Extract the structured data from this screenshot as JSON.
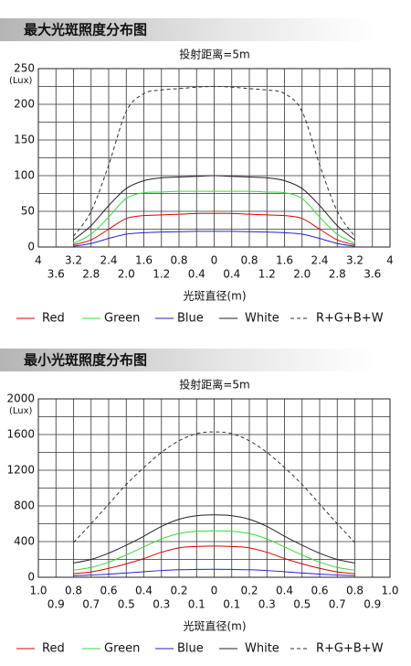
{
  "chart_data": [
    {
      "type": "line",
      "title": "最大光斑照度分布图",
      "subtitle": "投射距离=5m",
      "ylabel": "(Lux)",
      "xlabel": "光斑直径(m)",
      "x": [
        -3.2,
        -2.8,
        -2.4,
        -2.0,
        -1.6,
        -1.2,
        -0.8,
        -0.4,
        0,
        0.4,
        0.8,
        1.2,
        1.6,
        2.0,
        2.4,
        2.8,
        3.2
      ],
      "series": [
        {
          "name": "Red",
          "color": "#e00000",
          "values": [
            3,
            10,
            25,
            40,
            44,
            45,
            46,
            47,
            47,
            47,
            46,
            45,
            44,
            40,
            25,
            10,
            3
          ]
        },
        {
          "name": "Green",
          "color": "#33dd33",
          "values": [
            5,
            18,
            42,
            68,
            76,
            77,
            78,
            78,
            78,
            78,
            78,
            77,
            76,
            68,
            42,
            18,
            5
          ]
        },
        {
          "name": "Blue",
          "color": "#2222cc",
          "values": [
            1,
            5,
            12,
            18,
            20,
            21,
            21.5,
            22,
            22,
            22,
            21.5,
            21,
            20,
            18,
            12,
            5,
            1
          ]
        },
        {
          "name": "White",
          "color": "#222222",
          "values": [
            10,
            30,
            58,
            82,
            93,
            97,
            98,
            99,
            100,
            99,
            98,
            97,
            93,
            82,
            58,
            30,
            10
          ]
        },
        {
          "name": "R+G+B+W",
          "color": "#333333",
          "dashed": true,
          "values": [
            15,
            50,
            115,
            190,
            215,
            220,
            222,
            224,
            225,
            224,
            222,
            220,
            215,
            190,
            115,
            50,
            15
          ]
        }
      ],
      "xlim": [
        -4,
        4
      ],
      "xticks": [
        {
          "value": -4,
          "label": "4"
        },
        {
          "value": -3.6,
          "label": "3.6"
        },
        {
          "value": -3.2,
          "label": "3.2"
        },
        {
          "value": -2.8,
          "label": "2.8"
        },
        {
          "value": -2.4,
          "label": "2.4"
        },
        {
          "value": -2.0,
          "label": "2.0"
        },
        {
          "value": -1.6,
          "label": "1.6"
        },
        {
          "value": -1.2,
          "label": "1.2"
        },
        {
          "value": -0.8,
          "label": "0.8"
        },
        {
          "value": -0.4,
          "label": "0.4"
        },
        0,
        0.4,
        0.8,
        1.2,
        1.6,
        {
          "value": 2,
          "label": "2.0"
        },
        2.4,
        2.8,
        3.2,
        3.6,
        4
      ],
      "ylim": [
        0,
        250
      ],
      "yticks": [
        0,
        50,
        100,
        150,
        200,
        250
      ],
      "minor_yticks": [
        25,
        75,
        125,
        175,
        225
      ],
      "grid": true
    },
    {
      "type": "line",
      "title": "最小光斑照度分布图",
      "subtitle": "投射距离=5m",
      "ylabel": "(Lux)",
      "xlabel": "光斑直径(m)",
      "x": [
        -0.8,
        -0.7,
        -0.6,
        -0.5,
        -0.4,
        -0.3,
        -0.2,
        -0.1,
        0,
        0.1,
        0.2,
        0.3,
        0.4,
        0.5,
        0.6,
        0.7,
        0.8
      ],
      "series": [
        {
          "name": "Red",
          "color": "#e00000",
          "values": [
            40,
            60,
            100,
            150,
            210,
            280,
            330,
            345,
            350,
            345,
            330,
            280,
            210,
            150,
            100,
            60,
            40
          ]
        },
        {
          "name": "Green",
          "color": "#33dd33",
          "values": [
            80,
            110,
            170,
            250,
            340,
            430,
            490,
            515,
            520,
            515,
            490,
            430,
            340,
            250,
            170,
            110,
            80
          ]
        },
        {
          "name": "Blue",
          "color": "#2222cc",
          "values": [
            18,
            25,
            35,
            48,
            62,
            75,
            84,
            88,
            90,
            88,
            84,
            75,
            62,
            48,
            35,
            25,
            18
          ]
        },
        {
          "name": "White",
          "color": "#222222",
          "values": [
            160,
            200,
            270,
            360,
            460,
            570,
            650,
            690,
            700,
            690,
            650,
            570,
            460,
            360,
            270,
            200,
            160
          ]
        },
        {
          "name": "R+G+B+W",
          "color": "#333333",
          "dashed": true,
          "values": [
            390,
            600,
            820,
            1040,
            1230,
            1400,
            1530,
            1610,
            1630,
            1610,
            1530,
            1400,
            1230,
            1040,
            820,
            600,
            390
          ]
        }
      ],
      "xlim": [
        -1,
        1
      ],
      "xticks": [
        {
          "value": -1,
          "label": "1.0"
        },
        {
          "value": -0.9,
          "label": "0.9"
        },
        {
          "value": -0.8,
          "label": "0.8"
        },
        {
          "value": -0.7,
          "label": "0.7"
        },
        {
          "value": -0.6,
          "label": "0.6"
        },
        {
          "value": -0.5,
          "label": "0.5"
        },
        {
          "value": -0.4,
          "label": "0.4"
        },
        {
          "value": -0.3,
          "label": "0.3"
        },
        {
          "value": -0.2,
          "label": "0.2"
        },
        {
          "value": -0.1,
          "label": "0.1"
        },
        0,
        0.1,
        0.2,
        0.3,
        0.4,
        0.5,
        0.6,
        0.7,
        0.8,
        0.9,
        {
          "value": 1,
          "label": "1.0"
        }
      ],
      "ylim": [
        0,
        2000
      ],
      "yticks": [
        0,
        400,
        800,
        1200,
        1600,
        2000
      ],
      "minor_yticks": [
        200,
        600,
        1000,
        1400,
        1800
      ],
      "grid": true
    }
  ]
}
